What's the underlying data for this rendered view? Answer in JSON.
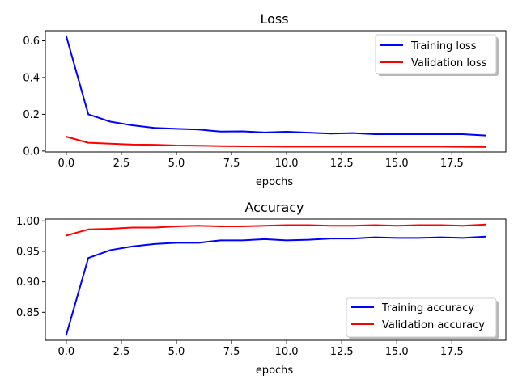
{
  "chart_data": [
    {
      "type": "line",
      "title": "Loss",
      "xlabel": "epochs",
      "ylabel": "",
      "xlim": [
        -0.95,
        19.95
      ],
      "ylim": [
        -0.005,
        0.655
      ],
      "xticks": [
        0.0,
        2.5,
        5.0,
        7.5,
        10.0,
        12.5,
        15.0,
        17.5
      ],
      "xtick_labels": [
        "0.0",
        "2.5",
        "5.0",
        "7.5",
        "10.0",
        "12.5",
        "15.0",
        "17.5"
      ],
      "yticks": [
        0.0,
        0.2,
        0.4,
        0.6
      ],
      "ytick_labels": [
        "0.0",
        "0.2",
        "0.4",
        "0.6"
      ],
      "grid": false,
      "legend_position": "upper right",
      "x": [
        0,
        1,
        2,
        3,
        4,
        5,
        6,
        7,
        8,
        9,
        10,
        11,
        12,
        13,
        14,
        15,
        16,
        17,
        18,
        19
      ],
      "series": [
        {
          "name": "Training loss",
          "color": "#0000ff",
          "values": [
            0.625,
            0.2,
            0.16,
            0.14,
            0.126,
            0.121,
            0.117,
            0.106,
            0.107,
            0.101,
            0.105,
            0.1,
            0.095,
            0.098,
            0.092,
            0.092,
            0.092,
            0.092,
            0.092,
            0.085
          ]
        },
        {
          "name": "Validation loss",
          "color": "#ff0000",
          "values": [
            0.078,
            0.045,
            0.04,
            0.035,
            0.034,
            0.03,
            0.029,
            0.027,
            0.026,
            0.025,
            0.024,
            0.024,
            0.024,
            0.024,
            0.024,
            0.024,
            0.024,
            0.024,
            0.023,
            0.022
          ]
        }
      ]
    },
    {
      "type": "line",
      "title": "Accuracy",
      "xlabel": "epochs",
      "ylabel": "",
      "xlim": [
        -0.95,
        19.95
      ],
      "ylim": [
        0.804,
        1.003
      ],
      "xticks": [
        0.0,
        2.5,
        5.0,
        7.5,
        10.0,
        12.5,
        15.0,
        17.5
      ],
      "xtick_labels": [
        "0.0",
        "2.5",
        "5.0",
        "7.5",
        "10.0",
        "12.5",
        "15.0",
        "17.5"
      ],
      "yticks": [
        0.85,
        0.9,
        0.95,
        1.0
      ],
      "ytick_labels": [
        "0.85",
        "0.90",
        "0.95",
        "1.00"
      ],
      "grid": false,
      "legend_position": "lower right",
      "x": [
        0,
        1,
        2,
        3,
        4,
        5,
        6,
        7,
        8,
        9,
        10,
        11,
        12,
        13,
        14,
        15,
        16,
        17,
        18,
        19
      ],
      "series": [
        {
          "name": "Training accuracy",
          "color": "#0000ff",
          "values": [
            0.813,
            0.939,
            0.952,
            0.958,
            0.962,
            0.964,
            0.964,
            0.968,
            0.968,
            0.97,
            0.968,
            0.969,
            0.971,
            0.971,
            0.973,
            0.972,
            0.972,
            0.973,
            0.972,
            0.974
          ]
        },
        {
          "name": "Validation accuracy",
          "color": "#ff0000",
          "values": [
            0.976,
            0.986,
            0.987,
            0.989,
            0.989,
            0.991,
            0.992,
            0.991,
            0.991,
            0.992,
            0.993,
            0.993,
            0.992,
            0.992,
            0.993,
            0.992,
            0.993,
            0.993,
            0.992,
            0.994
          ]
        }
      ]
    }
  ]
}
